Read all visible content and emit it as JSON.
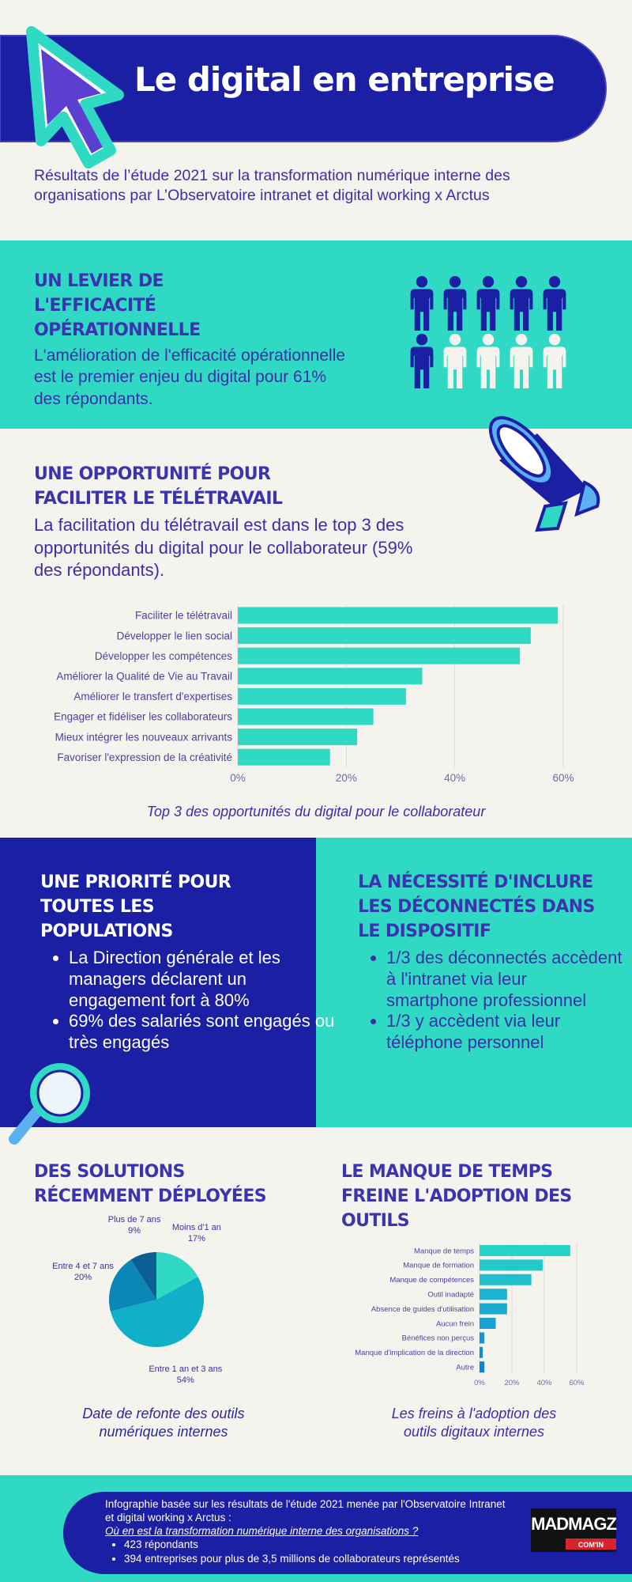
{
  "header": {
    "title": "Le digital en entreprise",
    "subtitle": "Résultats de l’étude 2021 sur la transformation numérique interne des organisations par L’Observatoire intranet et digital working x Arctus"
  },
  "levier": {
    "heading": "UN LEVIER DE L'EFFICACITÉ OPÉRATIONNELLE",
    "text": "L'amélioration de l'efficacité opérationnelle est le premier enjeu du digital pour 61% des répondants."
  },
  "teletravail": {
    "heading": "UNE OPPORTUNITÉ POUR FACILITER LE TÉLÉTRAVAIL",
    "text": "La facilitation du télétravail est dans le top 3 des opportunités du digital pour le collaborateur (59% des répondants)."
  },
  "priorite": {
    "heading": "UNE PRIORITÉ POUR TOUTES LES POPULATIONS",
    "items": [
      "La Direction générale et les managers déclarent un engagement fort à 80%",
      "69% des salariés sont engagés ou très engagés"
    ]
  },
  "deconnectes": {
    "heading": "LA NÉCESSITÉ D'INCLURE LES DÉCONNECTÉS DANS LE DISPOSITIF",
    "items": [
      "1/3 des déconnectés accèdent à l'intranet via leur smartphone professionnel",
      "1/3 y accèdent via leur téléphone personnel"
    ]
  },
  "solutions": {
    "heading": "DES SOLUTIONS RÉCEMMENT DÉPLOYÉES"
  },
  "temps": {
    "heading": "LE MANQUE DE TEMPS FREINE L'ADOPTION DES OUTILS"
  },
  "chart_data": [
    {
      "type": "bar",
      "caption": "Top 3 des opportunités du digital pour le collaborateur",
      "categories": [
        "Faciliter le télétravail",
        "Développer le lien social",
        "Développer les compétences",
        "Améliorer la Qualité de Vie au Travail",
        "Améliorer le transfert d'expertises",
        "Engager et fidéliser les collaborateurs",
        "Mieux intégrer les nouveaux arrivants",
        "Favoriser l'expression de la créativité"
      ],
      "values": [
        59,
        54,
        52,
        34,
        31,
        25,
        22,
        17
      ],
      "color": "#2fd9c4",
      "xlim": [
        0,
        60
      ],
      "xticks": [
        {
          "value": 0,
          "label": "0%"
        },
        {
          "value": 20,
          "label": "20%"
        },
        {
          "value": 40,
          "label": "40%"
        },
        {
          "value": 60,
          "label": "60%"
        }
      ],
      "grid": true
    },
    {
      "type": "pie",
      "caption": "Date de refonte des outils numériques internes",
      "categories": [
        "Moins d'1 an",
        "Entre 1 an et 3 ans",
        "Entre 4 et 7 ans",
        "Plus de 7 ans"
      ],
      "values": [
        17,
        54,
        20,
        9
      ],
      "value_labels": [
        "17%",
        "54%",
        "20%",
        "9%"
      ],
      "colors": [
        "#2fd9c4",
        "#0fb0c8",
        "#0b86b5",
        "#0a5f97"
      ]
    },
    {
      "type": "bar",
      "caption": "Les freins à l'adoption des outils digitaux internes",
      "categories": [
        "Manque de temps",
        "Manque de formation",
        "Manque de compétences",
        "Outil inadapté",
        "Absence de guides d'utilisation",
        "Aucun frein",
        "Bénéfices non perçus",
        "Manque d'implication de la direction",
        "Autre"
      ],
      "values": [
        56,
        39,
        32,
        17,
        17,
        10,
        3,
        2,
        3
      ],
      "colors": [
        "#27d3c6",
        "#22c9c9",
        "#1fbfcb",
        "#1cb5cd",
        "#19abcf",
        "#16a1d1",
        "#1397d3",
        "#108dd5",
        "#0d83d7"
      ],
      "xlim": [
        0,
        60
      ],
      "xticks": [
        {
          "value": 0,
          "label": "0%"
        },
        {
          "value": 20,
          "label": "20%"
        },
        {
          "value": 40,
          "label": "40%"
        },
        {
          "value": 60,
          "label": "60%"
        }
      ],
      "grid": true
    }
  ],
  "footer": {
    "intro": "Infographie basée sur les résultats de l'étude 2021 menée par l'Observatoire Intranet et digital working x Arctus :",
    "link": "Où en est la transformation numérique interne des organisations ?",
    "items": [
      "423 répondants",
      "394 entreprises pour plus de 3,5 millions de collaborateurs représentés"
    ],
    "logo": "MADMAGZ",
    "logo_sub": "COM'IN"
  }
}
